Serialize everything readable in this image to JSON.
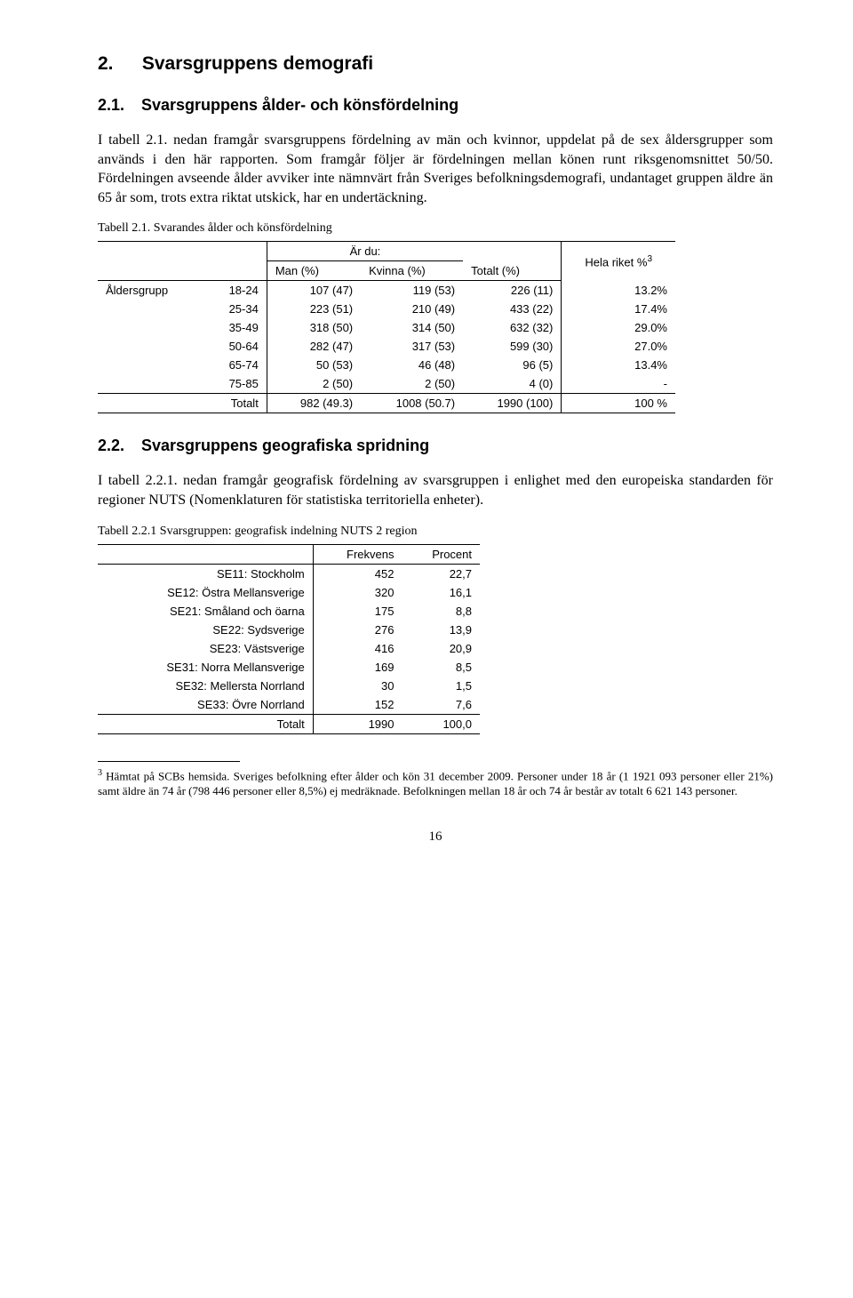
{
  "headings": {
    "h2_num": "2.",
    "h2_text": "Svarsgruppens demografi",
    "h21_num": "2.1.",
    "h21_text": "Svarsgruppens ålder- och könsfördelning",
    "h22_num": "2.2.",
    "h22_text": "Svarsgruppens geografiska spridning"
  },
  "paragraphs": {
    "p1": "I tabell 2.1. nedan framgår svarsgruppens fördelning av män och kvinnor, uppdelat på de sex åldersgrupper som används i den här rapporten. Som framgår följer är fördelningen mellan könen runt riksgenomsnittet 50/50. Fördelningen avseende ålder avviker inte nämnvärt från Sveriges befolkningsdemografi, undantaget gruppen äldre än 65 år som, trots extra riktat utskick, har en undertäckning.",
    "p2": "I tabell 2.2.1. nedan framgår geografisk fördelning av svarsgruppen i enlighet med den europeiska standarden för regioner NUTS (Nomenklaturen för statistiska territoriella enheter).",
    "cap1": "Tabell 2.1. Svarandes ålder och könsfördelning",
    "cap2": "Tabell 2.2.1 Svarsgruppen: geografisk indelning NUTS 2 region"
  },
  "table1": {
    "group_header": "Är du:",
    "col_man": "Man (%)",
    "col_kvinna": "Kvinna (%)",
    "col_total": "Totalt (%)",
    "col_riket": "Hela riket %",
    "footnote_mark": "3",
    "row_label": "Åldersgrupp",
    "rows": [
      {
        "age": "18-24",
        "man": "107 (47)",
        "kv": "119 (53)",
        "tot": "226 (11)",
        "rik": "13.2%"
      },
      {
        "age": "25-34",
        "man": "223 (51)",
        "kv": "210 (49)",
        "tot": "433 (22)",
        "rik": "17.4%"
      },
      {
        "age": "35-49",
        "man": "318 (50)",
        "kv": "314 (50)",
        "tot": "632 (32)",
        "rik": "29.0%"
      },
      {
        "age": "50-64",
        "man": "282 (47)",
        "kv": "317 (53)",
        "tot": "599 (30)",
        "rik": "27.0%"
      },
      {
        "age": "65-74",
        "man": "50 (53)",
        "kv": "46 (48)",
        "tot": "96 (5)",
        "rik": "13.4%"
      },
      {
        "age": "75-85",
        "man": "2 (50)",
        "kv": "2 (50)",
        "tot": "4 (0)",
        "rik": "-"
      }
    ],
    "total": {
      "label": "Totalt",
      "man": "982 (49.3)",
      "kv": "1008 (50.7)",
      "tot": "1990 (100)",
      "rik": "100 %"
    }
  },
  "table2": {
    "col_freq": "Frekvens",
    "col_pct": "Procent",
    "rows": [
      {
        "label": "SE11: Stockholm",
        "f": "452",
        "p": "22,7"
      },
      {
        "label": "SE12: Östra Mellansverige",
        "f": "320",
        "p": "16,1"
      },
      {
        "label": "SE21: Småland och öarna",
        "f": "175",
        "p": "8,8"
      },
      {
        "label": "SE22: Sydsverige",
        "f": "276",
        "p": "13,9"
      },
      {
        "label": "SE23: Västsverige",
        "f": "416",
        "p": "20,9"
      },
      {
        "label": "SE31: Norra Mellansverige",
        "f": "169",
        "p": "8,5"
      },
      {
        "label": "SE32: Mellersta Norrland",
        "f": "30",
        "p": "1,5"
      },
      {
        "label": "SE33: Övre Norrland",
        "f": "152",
        "p": "7,6"
      }
    ],
    "total": {
      "label": "Totalt",
      "f": "1990",
      "p": "100,0"
    }
  },
  "footnote": {
    "mark": "3",
    "text": " Hämtat på SCBs hemsida. Sveriges befolkning efter ålder och kön 31 december 2009. Personer under 18 år (1 1921 093 personer eller 21%) samt äldre än 74 år (798 446 personer eller 8,5%) ej medräknade. Befolkningen mellan 18 år och 74 år består av totalt 6 621 143 personer."
  },
  "page_number": "16"
}
